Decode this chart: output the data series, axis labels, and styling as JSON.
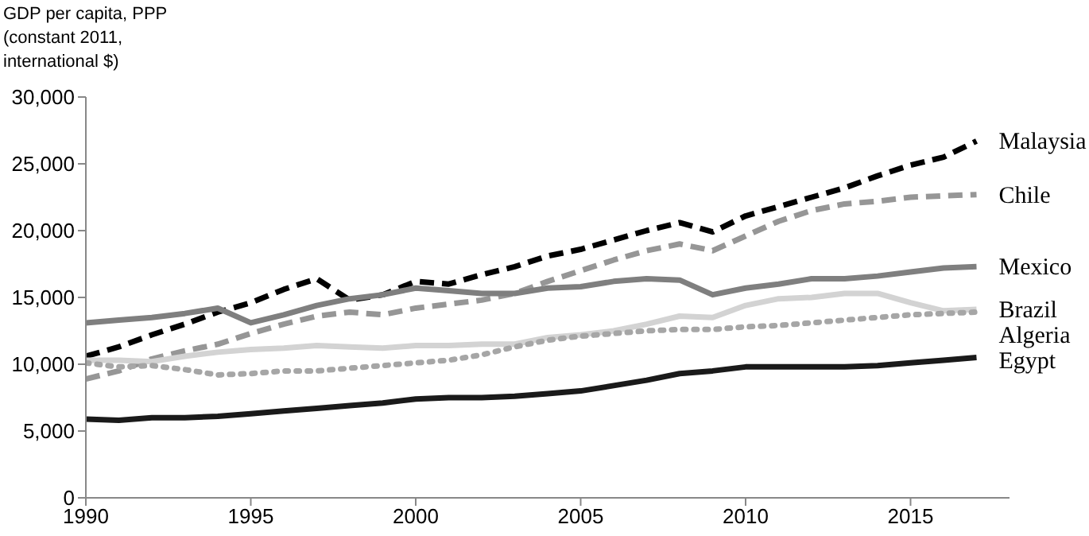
{
  "chart_data": {
    "type": "line",
    "ylabel": "GDP per capita, PPP\n(constant 2011,\ninternational $)",
    "x": [
      1990,
      1991,
      1992,
      1993,
      1994,
      1995,
      1996,
      1997,
      1998,
      1999,
      2000,
      2001,
      2002,
      2003,
      2004,
      2005,
      2006,
      2007,
      2008,
      2009,
      2010,
      2011,
      2012,
      2013,
      2014,
      2015,
      2016,
      2017
    ],
    "xlim": [
      1990,
      2018
    ],
    "xticks": [
      1990,
      1995,
      2000,
      2005,
      2010,
      2015
    ],
    "ylim": [
      0,
      30000
    ],
    "yticks": [
      0,
      {
        "value": 5000,
        "label": "5,000"
      },
      {
        "value": 10000,
        "label": "10,000"
      },
      {
        "value": 15000,
        "label": "15,000"
      },
      {
        "value": 20000,
        "label": "20,000"
      },
      {
        "value": 25000,
        "label": "25,000"
      },
      {
        "value": 30000,
        "label": "30,000"
      }
    ],
    "grid": false,
    "legend": false,
    "marker": "none",
    "series": [
      {
        "name": "Malaysia",
        "color": "#000000",
        "line_style": "dashed",
        "values": [
          10600,
          11300,
          12200,
          13000,
          13900,
          14600,
          15600,
          16400,
          14800,
          15200,
          16200,
          16000,
          16700,
          17300,
          18100,
          18600,
          19300,
          20000,
          20600,
          19900,
          21100,
          21800,
          22500,
          23200,
          24100,
          24900,
          25500,
          26700
        ]
      },
      {
        "name": "Chile",
        "color": "#969696",
        "line_style": "dashed",
        "values": [
          8900,
          9500,
          10400,
          11000,
          11500,
          12300,
          13000,
          13600,
          13900,
          13700,
          14200,
          14500,
          14800,
          15300,
          16200,
          17000,
          17800,
          18500,
          19000,
          18500,
          19600,
          20700,
          21500,
          22000,
          22200,
          22500,
          22600,
          22700
        ]
      },
      {
        "name": "Mexico",
        "color": "#7f7f7f",
        "line_style": "solid",
        "values": [
          13100,
          13300,
          13500,
          13800,
          14200,
          13100,
          13700,
          14400,
          14900,
          15200,
          15700,
          15500,
          15300,
          15300,
          15700,
          15800,
          16200,
          16400,
          16300,
          15200,
          15700,
          16000,
          16400,
          16400,
          16600,
          16900,
          17200,
          17300
        ]
      },
      {
        "name": "Brazil",
        "color": "#d3d3d3",
        "line_style": "solid",
        "values": [
          10300,
          10300,
          10200,
          10600,
          10900,
          11100,
          11200,
          11400,
          11300,
          11200,
          11400,
          11400,
          11500,
          11500,
          12000,
          12200,
          12500,
          13000,
          13600,
          13500,
          14400,
          14900,
          15000,
          15300,
          15300,
          14600,
          14000,
          14100
        ]
      },
      {
        "name": "Algeria",
        "color": "#a6a6a6",
        "line_style": "dotted",
        "values": [
          10100,
          9800,
          9900,
          9600,
          9200,
          9300,
          9500,
          9500,
          9700,
          9900,
          10100,
          10300,
          10700,
          11300,
          11800,
          12100,
          12300,
          12500,
          12600,
          12600,
          12800,
          12900,
          13100,
          13300,
          13500,
          13700,
          13800,
          13900
        ]
      },
      {
        "name": "Egypt",
        "color": "#1a1a1a",
        "line_style": "solid",
        "values": [
          5900,
          5800,
          6000,
          6000,
          6100,
          6300,
          6500,
          6700,
          6900,
          7100,
          7400,
          7500,
          7500,
          7600,
          7800,
          8000,
          8400,
          8800,
          9300,
          9500,
          9800,
          9800,
          9800,
          9800,
          9900,
          10100,
          10300,
          10500
        ]
      }
    ]
  }
}
